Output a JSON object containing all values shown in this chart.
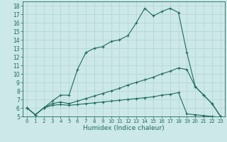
{
  "xlabel": "Humidex (Indice chaleur)",
  "bg_color": "#cce8e8",
  "line_color": "#1f6b5e",
  "grid_color": "#b0d4d0",
  "xlim": [
    -0.5,
    23.5
  ],
  "ylim": [
    5,
    18.5
  ],
  "yticks": [
    5,
    6,
    7,
    8,
    9,
    10,
    11,
    12,
    13,
    14,
    15,
    16,
    17,
    18
  ],
  "xticks": [
    0,
    1,
    2,
    3,
    4,
    5,
    6,
    7,
    8,
    9,
    10,
    11,
    12,
    13,
    14,
    15,
    16,
    17,
    18,
    19,
    20,
    21,
    22,
    23
  ],
  "line1_x": [
    0,
    1,
    2,
    3,
    4,
    5,
    6,
    7,
    8,
    9,
    10,
    11,
    12,
    13,
    14,
    15,
    16,
    17,
    18,
    19,
    20,
    21,
    22,
    23
  ],
  "line1_y": [
    6.0,
    5.2,
    6.0,
    6.8,
    7.5,
    7.5,
    10.5,
    12.5,
    13.0,
    13.2,
    13.8,
    14.0,
    14.5,
    16.0,
    17.7,
    16.8,
    17.3,
    17.7,
    17.2,
    12.5,
    8.5,
    7.5,
    6.5,
    5.0
  ],
  "line2_x": [
    0,
    1,
    2,
    3,
    4,
    5,
    6,
    7,
    8,
    9,
    10,
    11,
    12,
    13,
    14,
    15,
    16,
    17,
    18,
    19,
    20,
    21,
    22,
    23
  ],
  "line2_y": [
    6.0,
    5.2,
    6.0,
    6.5,
    6.7,
    6.5,
    6.8,
    7.1,
    7.4,
    7.7,
    8.0,
    8.3,
    8.7,
    9.0,
    9.3,
    9.6,
    10.0,
    10.3,
    10.7,
    10.5,
    8.5,
    7.5,
    6.5,
    5.0
  ],
  "line3_x": [
    0,
    1,
    2,
    3,
    4,
    5,
    6,
    7,
    8,
    9,
    10,
    11,
    12,
    13,
    14,
    15,
    16,
    17,
    18,
    19,
    20,
    21,
    22,
    23
  ],
  "line3_y": [
    6.0,
    5.2,
    6.0,
    6.3,
    6.4,
    6.3,
    6.4,
    6.5,
    6.6,
    6.7,
    6.8,
    6.9,
    7.0,
    7.1,
    7.2,
    7.3,
    7.5,
    7.6,
    7.8,
    5.3,
    5.2,
    5.1,
    5.0,
    4.9
  ]
}
